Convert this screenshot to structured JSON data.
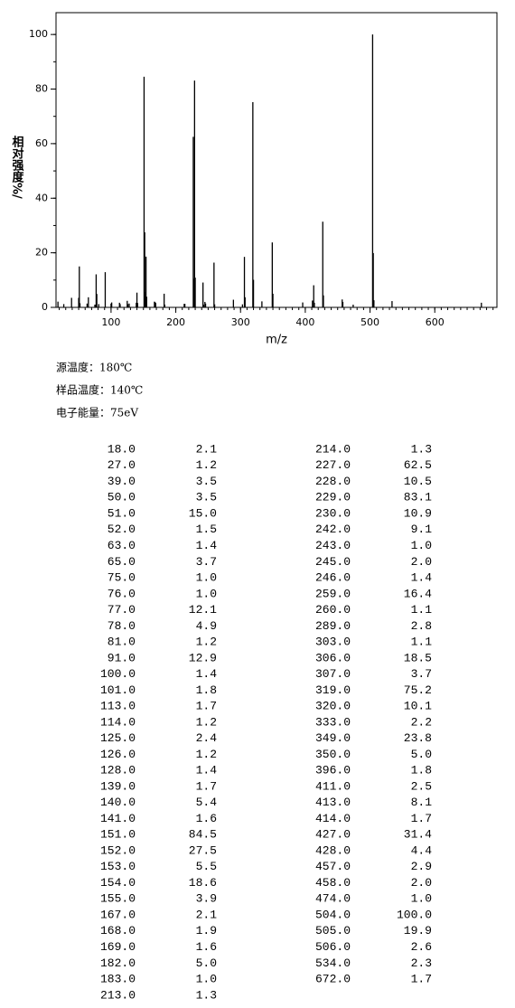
{
  "chart_data": {
    "type": "stick",
    "x_label": "m/z",
    "y_label": "相对强度%/",
    "x": [
      18,
      27,
      39,
      50,
      51,
      52,
      63,
      65,
      75,
      76,
      77,
      78,
      81,
      91,
      100,
      101,
      113,
      114,
      125,
      126,
      128,
      139,
      140,
      141,
      151,
      152,
      153,
      154,
      155,
      167,
      168,
      169,
      182,
      183,
      213,
      214,
      227,
      228,
      229,
      230,
      242,
      243,
      245,
      246,
      259,
      260,
      289,
      303,
      306,
      307,
      319,
      320,
      333,
      349,
      350,
      396,
      411,
      413,
      414,
      427,
      428,
      457,
      458,
      474,
      504,
      505,
      506,
      534,
      672
    ],
    "values": [
      2.1,
      1.2,
      3.5,
      3.5,
      15.0,
      1.5,
      1.4,
      3.7,
      1.0,
      1.0,
      12.1,
      4.9,
      1.2,
      12.9,
      1.4,
      1.8,
      1.7,
      1.2,
      2.4,
      1.2,
      1.4,
      1.7,
      5.4,
      1.6,
      84.5,
      27.5,
      5.5,
      18.6,
      3.9,
      2.1,
      1.9,
      1.6,
      5.0,
      1.0,
      1.3,
      1.3,
      62.5,
      10.5,
      83.1,
      10.9,
      9.1,
      1.0,
      2.0,
      1.4,
      16.4,
      1.1,
      2.8,
      1.1,
      18.5,
      3.7,
      75.2,
      10.1,
      2.2,
      23.8,
      5.0,
      1.8,
      2.5,
      8.1,
      1.7,
      31.4,
      4.4,
      2.9,
      2.0,
      1.0,
      100.0,
      19.9,
      2.6,
      2.3,
      1.7
    ],
    "color": "#000000",
    "xlim": [
      15,
      696
    ],
    "ylim": [
      0,
      108
    ],
    "xticks": [
      100,
      200,
      300,
      400,
      500,
      600
    ],
    "yticks": [
      0,
      20,
      40,
      60,
      80,
      100
    ]
  },
  "info": [
    "源温度：180℃",
    "样品温度：140℃",
    "电子能量：75eV"
  ],
  "table": {
    "left": [
      [
        "18.0",
        "2.1"
      ],
      [
        "27.0",
        "1.2"
      ],
      [
        "39.0",
        "3.5"
      ],
      [
        "50.0",
        "3.5"
      ],
      [
        "51.0",
        "15.0"
      ],
      [
        "52.0",
        "1.5"
      ],
      [
        "63.0",
        "1.4"
      ],
      [
        "65.0",
        "3.7"
      ],
      [
        "75.0",
        "1.0"
      ],
      [
        "76.0",
        "1.0"
      ],
      [
        "77.0",
        "12.1"
      ],
      [
        "78.0",
        "4.9"
      ],
      [
        "81.0",
        "1.2"
      ],
      [
        "91.0",
        "12.9"
      ],
      [
        "100.0",
        "1.4"
      ],
      [
        "101.0",
        "1.8"
      ],
      [
        "113.0",
        "1.7"
      ],
      [
        "114.0",
        "1.2"
      ],
      [
        "125.0",
        "2.4"
      ],
      [
        "126.0",
        "1.2"
      ],
      [
        "128.0",
        "1.4"
      ],
      [
        "139.0",
        "1.7"
      ],
      [
        "140.0",
        "5.4"
      ],
      [
        "141.0",
        "1.6"
      ],
      [
        "151.0",
        "84.5"
      ],
      [
        "152.0",
        "27.5"
      ],
      [
        "153.0",
        "5.5"
      ],
      [
        "154.0",
        "18.6"
      ],
      [
        "155.0",
        "3.9"
      ],
      [
        "167.0",
        "2.1"
      ],
      [
        "168.0",
        "1.9"
      ],
      [
        "169.0",
        "1.6"
      ],
      [
        "182.0",
        "5.0"
      ],
      [
        "183.0",
        "1.0"
      ],
      [
        "213.0",
        "1.3"
      ]
    ],
    "right": [
      [
        "214.0",
        "1.3"
      ],
      [
        "227.0",
        "62.5"
      ],
      [
        "228.0",
        "10.5"
      ],
      [
        "229.0",
        "83.1"
      ],
      [
        "230.0",
        "10.9"
      ],
      [
        "242.0",
        "9.1"
      ],
      [
        "243.0",
        "1.0"
      ],
      [
        "245.0",
        "2.0"
      ],
      [
        "246.0",
        "1.4"
      ],
      [
        "259.0",
        "16.4"
      ],
      [
        "260.0",
        "1.1"
      ],
      [
        "289.0",
        "2.8"
      ],
      [
        "303.0",
        "1.1"
      ],
      [
        "306.0",
        "18.5"
      ],
      [
        "307.0",
        "3.7"
      ],
      [
        "319.0",
        "75.2"
      ],
      [
        "320.0",
        "10.1"
      ],
      [
        "333.0",
        "2.2"
      ],
      [
        "349.0",
        "23.8"
      ],
      [
        "350.0",
        "5.0"
      ],
      [
        "396.0",
        "1.8"
      ],
      [
        "411.0",
        "2.5"
      ],
      [
        "413.0",
        "8.1"
      ],
      [
        "414.0",
        "1.7"
      ],
      [
        "427.0",
        "31.4"
      ],
      [
        "428.0",
        "4.4"
      ],
      [
        "457.0",
        "2.9"
      ],
      [
        "458.0",
        "2.0"
      ],
      [
        "474.0",
        "1.0"
      ],
      [
        "504.0",
        "100.0"
      ],
      [
        "505.0",
        "19.9"
      ],
      [
        "506.0",
        "2.6"
      ],
      [
        "534.0",
        "2.3"
      ],
      [
        "672.0",
        "1.7"
      ]
    ]
  }
}
